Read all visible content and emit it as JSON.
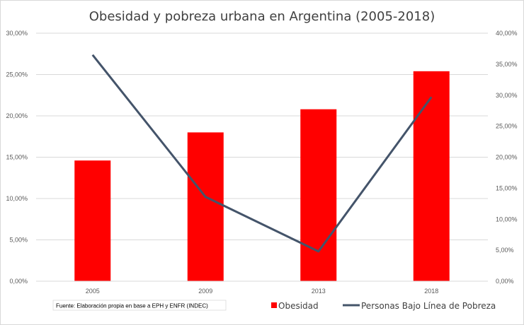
{
  "chart_data": {
    "type": "bar+line",
    "title": "Obesidad y  pobreza urbana  en Argentina (2005-2018)",
    "categories": [
      "2005",
      "2009",
      "2013",
      "2018"
    ],
    "series": [
      {
        "name": "Obesidad",
        "type": "bar",
        "axis": "left",
        "values": [
          14.6,
          18.0,
          20.8,
          25.4
        ],
        "color": "#ff0000"
      },
      {
        "name": "Personas Bajo Línea de Pobreza",
        "type": "line",
        "axis": "right",
        "values": [
          36.5,
          13.6,
          4.8,
          29.7
        ],
        "color": "#44546a"
      }
    ],
    "y_left": {
      "min": 0,
      "max": 30,
      "step": 5,
      "tick_labels": [
        "0,00%",
        "5,00%",
        "10,00%",
        "15,00%",
        "20,00%",
        "25,00%",
        "30,00%"
      ]
    },
    "y_right": {
      "min": 0,
      "max": 40,
      "step": 5,
      "tick_labels": [
        "0,00%",
        "5,00%",
        "10,00%",
        "15,00%",
        "20,00%",
        "25,00%",
        "30,00%",
        "35,00%",
        "40,00%"
      ]
    },
    "grid": true,
    "legend_position": "bottom-right",
    "source_note": "Fuente: Elaboración propia en base a EPH y ENFR (INDEC)"
  }
}
